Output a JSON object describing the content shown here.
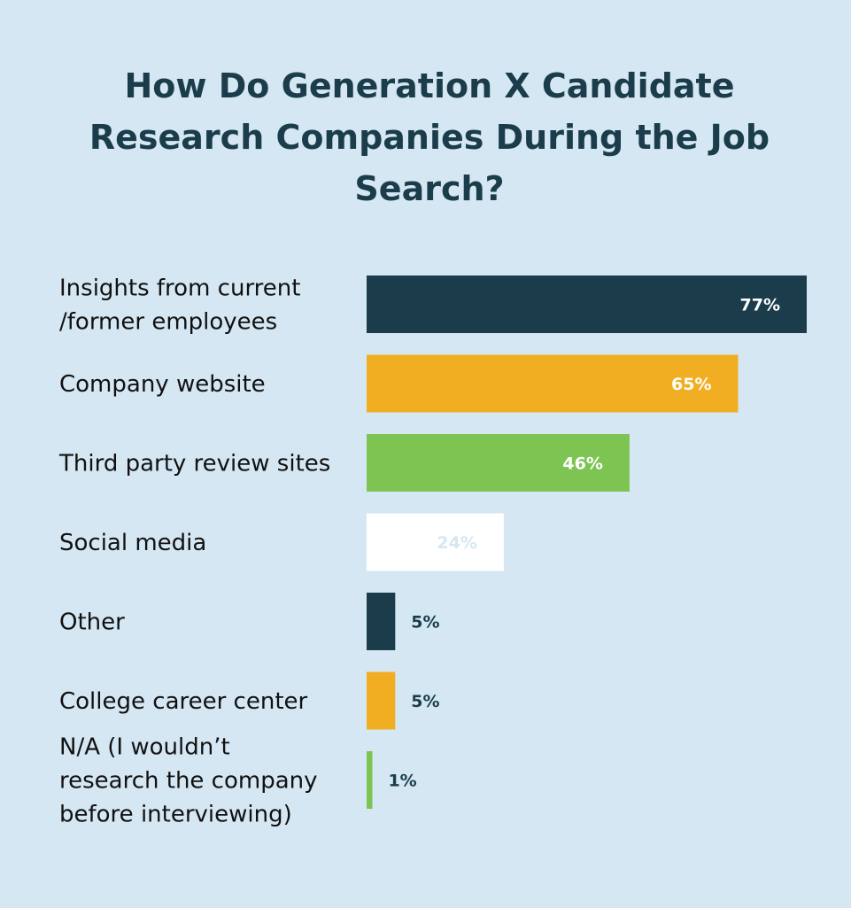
{
  "chart_data": {
    "type": "bar",
    "orientation": "horizontal",
    "title": "How Do Generation X Candidate Research Companies During the Job Search?",
    "categories": [
      "Insights from current /former employees",
      "Company website",
      "Third party review sites",
      "Social media",
      "Other",
      "College career center",
      "N/A (I wouldn’t research the company before interviewing)"
    ],
    "category_lines": [
      [
        "Insights from current",
        "/former employees"
      ],
      [
        "Company website"
      ],
      [
        "Third party review sites"
      ],
      [
        "Social media"
      ],
      [
        "Other"
      ],
      [
        "College career center"
      ],
      [
        "N/A (I wouldn’t",
        "research the company",
        "before interviewing)"
      ]
    ],
    "values": [
      77,
      65,
      46,
      24,
      5,
      5,
      1
    ],
    "value_labels": [
      "77%",
      "65%",
      "46%",
      "24%",
      "5%",
      "5%",
      "1%"
    ],
    "bar_colors": [
      "#1b3d4b",
      "#f2ae22",
      "#7dc453",
      "#ffffff",
      "#1b3d4b",
      "#f2ae22",
      "#7dc453"
    ],
    "label_colors": [
      "#ffffff",
      "#ffffff",
      "#ffffff",
      "#d5e7f3",
      "#1b3d4b",
      "#1b3d4b",
      "#1b3d4b"
    ],
    "xlim": [
      0,
      77
    ],
    "grid": false,
    "legend": "none"
  }
}
